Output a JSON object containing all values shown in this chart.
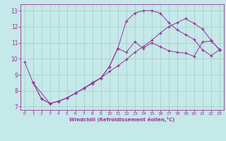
{
  "xlabel": "Windchill (Refroidissement éolien,°C)",
  "xlim": [
    -0.5,
    23.5
  ],
  "ylim": [
    6.8,
    13.4
  ],
  "xticks": [
    0,
    1,
    2,
    3,
    4,
    5,
    6,
    7,
    8,
    9,
    10,
    11,
    12,
    13,
    14,
    15,
    16,
    17,
    18,
    19,
    20,
    21,
    22,
    23
  ],
  "yticks": [
    7,
    8,
    9,
    10,
    11,
    12,
    13
  ],
  "bg_color": "#c5e8e8",
  "line_color": "#993399",
  "grid_color": "#a0cccc",
  "line1_x": [
    0,
    1,
    2,
    3,
    4,
    5,
    6,
    7,
    8,
    9,
    10,
    11,
    12,
    13,
    14,
    15,
    16,
    17,
    18,
    19,
    20,
    21,
    22,
    23
  ],
  "line1_y": [
    9.8,
    8.5,
    7.5,
    7.2,
    7.35,
    7.55,
    7.85,
    8.15,
    8.5,
    8.8,
    9.5,
    10.65,
    10.4,
    11.05,
    10.65,
    11.0,
    10.75,
    10.5,
    10.4,
    10.35,
    10.15,
    11.05,
    11.1,
    10.6
  ],
  "line2_x": [
    1,
    2,
    3,
    4,
    5,
    6,
    7,
    8,
    9,
    10,
    11,
    12,
    13,
    14,
    15,
    16,
    17,
    18,
    19,
    20,
    21,
    22,
    23
  ],
  "line2_y": [
    8.5,
    7.5,
    7.2,
    7.35,
    7.55,
    7.85,
    8.15,
    8.5,
    8.8,
    9.5,
    10.65,
    12.35,
    12.85,
    13.0,
    13.0,
    12.85,
    12.25,
    11.8,
    11.5,
    11.2,
    10.55,
    10.2,
    10.55
  ],
  "line3_x": [
    1,
    3,
    4,
    5,
    6,
    7,
    8,
    9,
    10,
    11,
    12,
    13,
    14,
    15,
    16,
    17,
    18,
    19,
    20,
    21,
    22,
    23
  ],
  "line3_y": [
    8.5,
    7.2,
    7.35,
    7.55,
    7.85,
    8.15,
    8.45,
    8.8,
    9.2,
    9.55,
    9.95,
    10.4,
    10.75,
    11.15,
    11.6,
    12.0,
    12.25,
    12.5,
    12.2,
    11.85,
    11.15,
    10.55
  ]
}
